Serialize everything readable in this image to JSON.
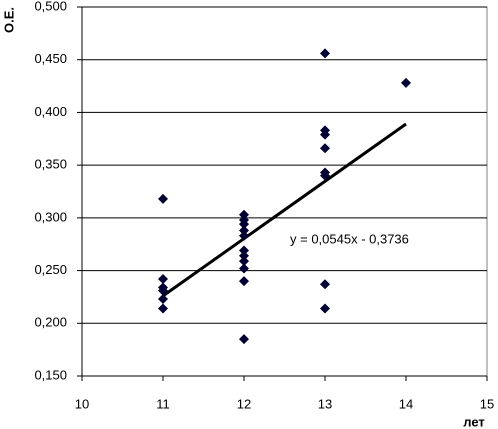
{
  "chart_data": {
    "type": "scatter",
    "y_label": "О.Е.",
    "x_label": "лет",
    "x": [
      11,
      11,
      11,
      11,
      11,
      11,
      12,
      12,
      12,
      12,
      12,
      12,
      12,
      12,
      12,
      12,
      12,
      13,
      13,
      13,
      13,
      13,
      13,
      13,
      13,
      14
    ],
    "values": [
      0.318,
      0.242,
      0.234,
      0.231,
      0.223,
      0.214,
      0.303,
      0.298,
      0.294,
      0.288,
      0.283,
      0.269,
      0.264,
      0.259,
      0.252,
      0.24,
      0.185,
      0.456,
      0.383,
      0.379,
      0.366,
      0.343,
      0.34,
      0.237,
      0.214,
      0.428
    ],
    "color": "#000033",
    "trendline": {
      "x": [
        11,
        14
      ],
      "values": [
        0.226,
        0.389
      ],
      "color": "#000000",
      "equation": "y = 0,0545x - 0,3736"
    },
    "xlim": [
      10,
      15
    ],
    "xticks": [
      10,
      11,
      12,
      13,
      14,
      15
    ],
    "ylim": [
      0.15,
      0.5
    ],
    "yticks": [
      {
        "value": 0.15,
        "label": "0,150"
      },
      {
        "value": 0.2,
        "label": "0,200"
      },
      {
        "value": 0.25,
        "label": "0,250"
      },
      {
        "value": 0.3,
        "label": "0,300"
      },
      {
        "value": 0.35,
        "label": "0,350"
      },
      {
        "value": 0.4,
        "label": "0,400"
      },
      {
        "value": 0.45,
        "label": "0,450"
      },
      {
        "value": 0.5,
        "label": "0,500"
      }
    ],
    "grid": true
  }
}
